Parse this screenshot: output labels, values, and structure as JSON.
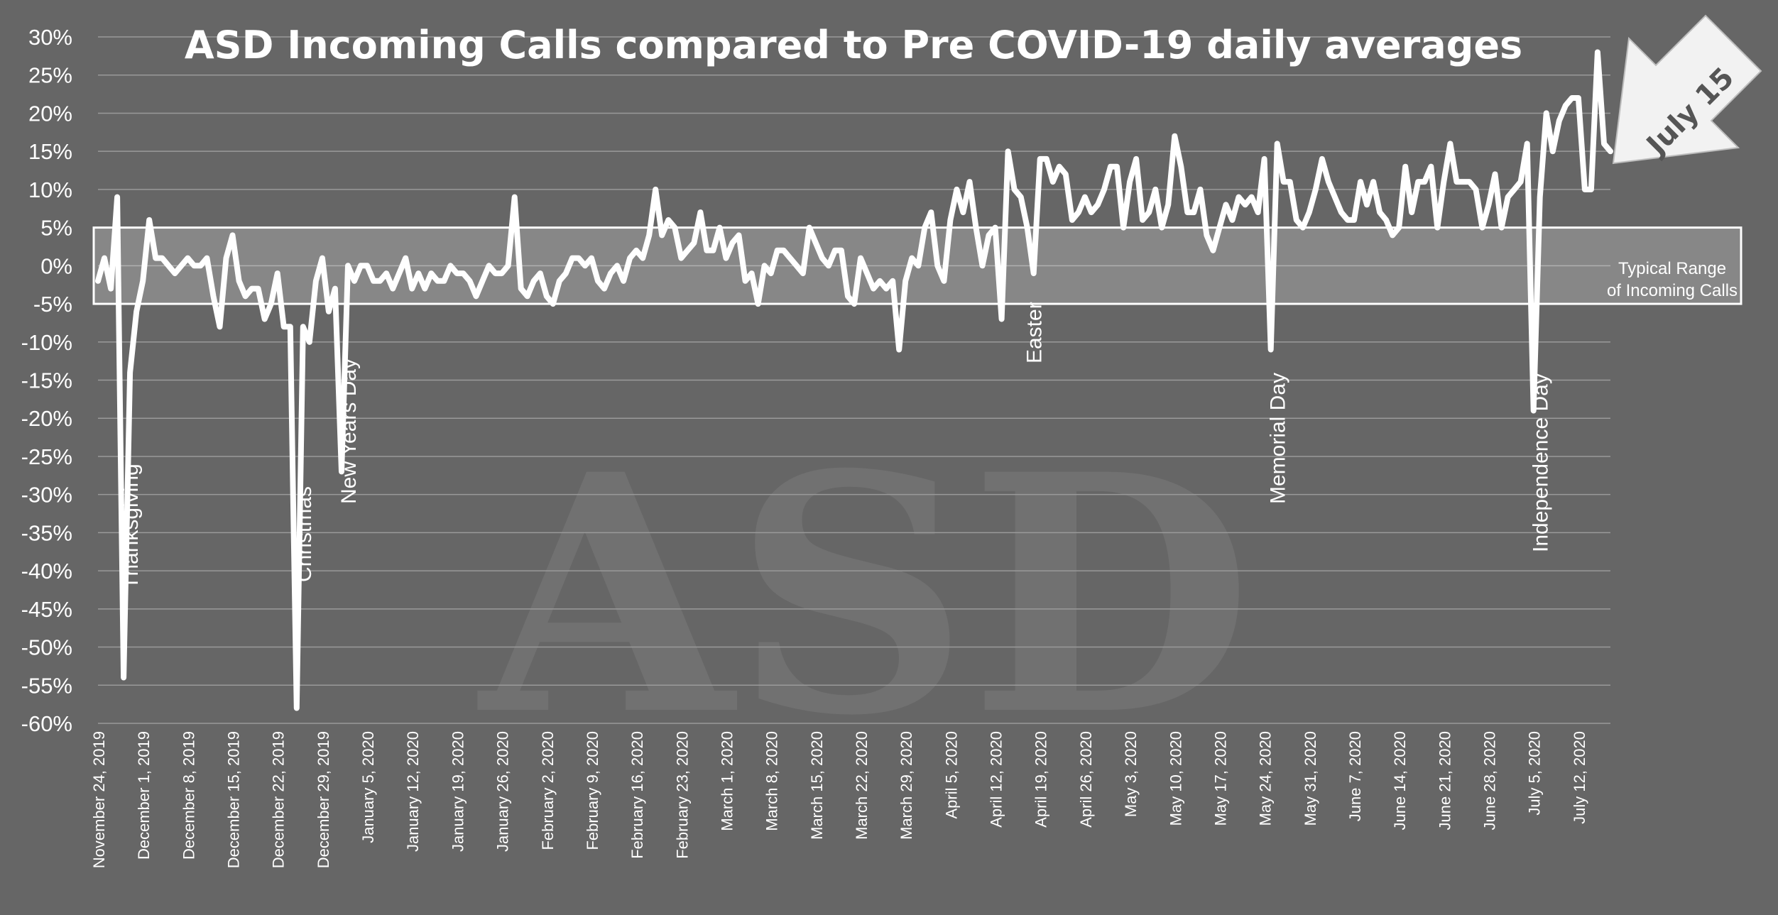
{
  "chart_data": {
    "type": "line",
    "title": "ASD Incoming Calls compared to Pre COVID-19 daily averages",
    "xlabel": "",
    "ylabel": "",
    "ylim": [
      -60,
      30
    ],
    "y_ticks": [
      "30%",
      "25%",
      "20%",
      "15%",
      "10%",
      "5%",
      "0%",
      "-5%",
      "-10%",
      "-15%",
      "-20%",
      "-25%",
      "-30%",
      "-35%",
      "-40%",
      "-45%",
      "-50%",
      "-55%",
      "-60%"
    ],
    "grid": true,
    "x_start_date": "2019-11-24",
    "x_tick_labels": [
      "November 24, 2019",
      "December 1, 2019",
      "December 8, 2019",
      "December 15, 2019",
      "December 22, 2019",
      "December 29, 2019",
      "January 5, 2020",
      "January 12, 2020",
      "January 19, 2020",
      "January 26, 2020",
      "February 2, 2020",
      "February 9, 2020",
      "February 16, 2020",
      "February 23, 2020",
      "March 1, 2020",
      "March 8, 2020",
      "March 15, 2020",
      "March 22, 2020",
      "March 29, 2020",
      "April 5, 2020",
      "April 12, 2020",
      "April 19, 2020",
      "April 26, 2020",
      "May 3, 2020",
      "May 10, 2020",
      "May 17, 2020",
      "May 24, 2020",
      "May 31, 2020",
      "June 7, 2020",
      "June 14, 2020",
      "June 21, 2020",
      "June 28, 2020",
      "July 5, 2020",
      "July 12, 2020"
    ],
    "series": [
      {
        "name": "",
        "color": "#ffffff",
        "values": [
          -2,
          1,
          -3,
          9,
          -54,
          -14,
          -6,
          -2,
          6,
          1,
          1,
          0,
          -1,
          0,
          1,
          0,
          0,
          1,
          -4,
          -8,
          1,
          4,
          -2,
          -4,
          -3,
          -3,
          -7,
          -5,
          -1,
          -8,
          -8,
          -58,
          -8,
          -10,
          -2,
          1,
          -6,
          -3,
          -27,
          0,
          -2,
          0,
          0,
          -2,
          -2,
          -1,
          -3,
          -1,
          1,
          -3,
          -1,
          -3,
          -1,
          -2,
          -2,
          0,
          -1,
          -1,
          -2,
          -4,
          -2,
          0,
          -1,
          -1,
          0,
          9,
          -3,
          -4,
          -2,
          -1,
          -4,
          -5,
          -2,
          -1,
          1,
          1,
          0,
          1,
          -2,
          -3,
          -1,
          0,
          -2,
          1,
          2,
          1,
          4,
          10,
          4,
          6,
          5,
          1,
          2,
          3,
          7,
          2,
          2,
          5,
          1,
          3,
          4,
          -2,
          -1,
          -5,
          0,
          -1,
          2,
          2,
          1,
          0,
          -1,
          5,
          3,
          1,
          0,
          2,
          2,
          -4,
          -5,
          1,
          -1,
          -3,
          -2,
          -3,
          -2,
          -11,
          -2,
          1,
          0,
          5,
          7,
          0,
          -2,
          6,
          10,
          7,
          11,
          5,
          0,
          4,
          5,
          -7,
          15,
          10,
          9,
          5,
          -1,
          14,
          14,
          11,
          13,
          12,
          6,
          7,
          9,
          7,
          8,
          10,
          13,
          13,
          5,
          11,
          14,
          6,
          7,
          10,
          5,
          8,
          17,
          13,
          7,
          7,
          10,
          4,
          2,
          5,
          8,
          6,
          9,
          8,
          9,
          7,
          14,
          -11,
          16,
          11,
          11,
          6,
          5,
          7,
          10,
          14,
          11,
          9,
          7,
          6,
          6,
          11,
          8,
          11,
          7,
          6,
          4,
          5,
          13,
          7,
          11,
          11,
          13,
          5,
          11,
          16,
          11,
          11,
          11,
          10,
          5,
          8,
          12,
          5,
          9,
          10,
          11,
          16,
          -19,
          9,
          20,
          15,
          19,
          21,
          22,
          22,
          10,
          10,
          28,
          16,
          15
        ]
      }
    ],
    "annotations": {
      "holidays": [
        {
          "label": "Thanksgiving",
          "x_index": 4
        },
        {
          "label": "Christmas",
          "x_index": 31
        },
        {
          "label": "New Years Day",
          "x_index": 38
        },
        {
          "label": "Easter",
          "x_index": 145
        },
        {
          "label": "Memorial Day",
          "x_index": 183
        },
        {
          "label": "Independence Day",
          "x_index": 224
        }
      ],
      "typical_range": {
        "label_line1": "Typical Range",
        "label_line2": "of Incoming Calls",
        "y_low": -5,
        "y_high": 5
      },
      "callout": {
        "label": "July 15"
      },
      "watermark": "ASD"
    }
  }
}
